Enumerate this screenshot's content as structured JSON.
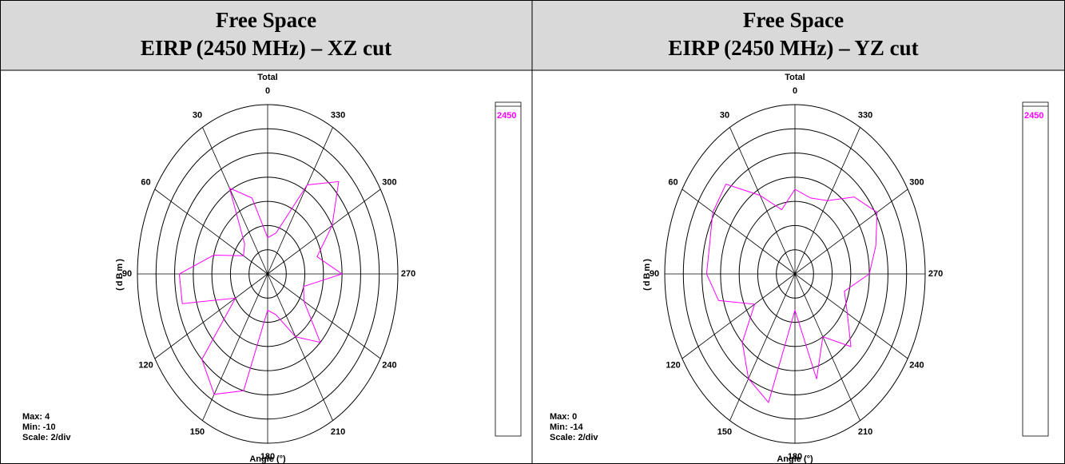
{
  "chart_data": [
    {
      "type": "polar",
      "heading": [
        "Free Space",
        "EIRP (2450 MHz) – XZ cut"
      ],
      "title": "Total",
      "theta": [
        0,
        15,
        30,
        45,
        60,
        75,
        90,
        105,
        120,
        135,
        150,
        165,
        180,
        195,
        210,
        225,
        240,
        255,
        270,
        285,
        300,
        315,
        330,
        345
      ],
      "series": [
        {
          "name": "2450",
          "color": "#ff00ff",
          "values": [
            -7,
            -3.5,
            -1.8,
            -6.5,
            -7,
            -4,
            -0.5,
            -0.5,
            -6,
            0,
            1.5,
            0,
            -7,
            -6.5,
            -4,
            -2,
            -5.5,
            -6,
            -2,
            -4.5,
            -2,
            0.8,
            -1.5,
            -6.5
          ]
        }
      ],
      "rlim": [
        -10,
        4
      ],
      "rticks": [
        -8,
        -6,
        -4,
        -2,
        0,
        2,
        4
      ],
      "angle_ticks": [
        0,
        30,
        60,
        90,
        120,
        150,
        180,
        210,
        240,
        270,
        300,
        330
      ],
      "ylabel": "(dBm)",
      "xlabel": "Angle (°)",
      "notes": [
        "Max: 4",
        "Min: -10",
        "Scale: 2/div"
      ]
    },
    {
      "type": "polar",
      "heading": [
        "Free Space",
        "EIRP (2450 MHz) – YZ cut"
      ],
      "title": "Total",
      "theta": [
        0,
        15,
        30,
        45,
        60,
        75,
        90,
        105,
        120,
        135,
        150,
        165,
        180,
        195,
        210,
        225,
        240,
        255,
        270,
        285,
        300,
        315,
        330,
        345
      ],
      "series": [
        {
          "name": "2450",
          "color": "#ff00ff",
          "values": [
            -7,
            -8.5,
            -6.5,
            -3.5,
            -3.8,
            -4.5,
            -4.5,
            -5.5,
            -9,
            -6,
            -4,
            -3,
            -11,
            -5,
            -8,
            -5.5,
            -7.5,
            -8.5,
            -6,
            -5,
            -3.8,
            -5,
            -7,
            -7.5
          ]
        }
      ],
      "rlim": [
        -14,
        0
      ],
      "rticks": [
        -12,
        -10,
        -8,
        -6,
        -4,
        -2,
        0
      ],
      "angle_ticks": [
        0,
        30,
        60,
        90,
        120,
        150,
        180,
        210,
        240,
        270,
        300,
        330
      ],
      "ylabel": "(dBm)",
      "xlabel": "Angle (°)",
      "notes": [
        "Max: 0",
        "Min: -14",
        "Scale: 2/div"
      ]
    }
  ]
}
